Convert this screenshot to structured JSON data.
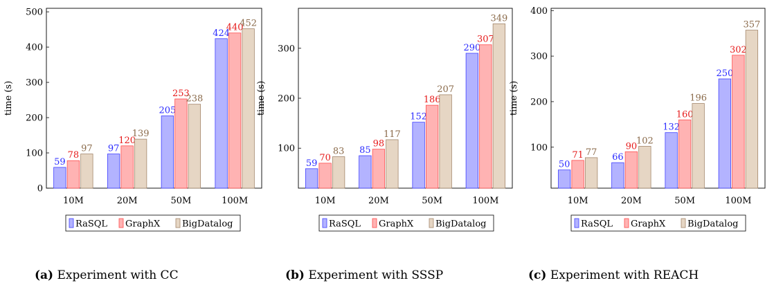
{
  "chart_data": [
    {
      "type": "bar",
      "categories": [
        "10M",
        "20M",
        "50M",
        "100M"
      ],
      "series": [
        {
          "name": "RaSQL",
          "values": [
            59,
            97,
            205,
            424
          ]
        },
        {
          "name": "GraphX",
          "values": [
            78,
            120,
            253,
            440
          ]
        },
        {
          "name": "BigDatalog",
          "values": [
            97,
            139,
            238,
            452
          ]
        }
      ],
      "ylabel": "time (s)",
      "ylim": [
        0,
        510
      ],
      "yticks": [
        0,
        100,
        200,
        300,
        400,
        500
      ],
      "legend": "bottom",
      "grid": false,
      "caption_tag": "(a)",
      "caption": "Experiment with CC"
    },
    {
      "type": "bar",
      "categories": [
        "10M",
        "20M",
        "50M",
        "100M"
      ],
      "series": [
        {
          "name": "RaSQL",
          "values": [
            59,
            85,
            152,
            290
          ]
        },
        {
          "name": "GraphX",
          "values": [
            70,
            98,
            186,
            307
          ]
        },
        {
          "name": "BigDatalog",
          "values": [
            83,
            117,
            207,
            349
          ]
        }
      ],
      "ylabel": "time (s)",
      "ylim": [
        20,
        380
      ],
      "yticks": [
        100,
        200,
        300
      ],
      "legend": "bottom",
      "grid": false,
      "caption_tag": "(b)",
      "caption": "Experiment with SSSP"
    },
    {
      "type": "bar",
      "categories": [
        "10M",
        "20M",
        "50M",
        "100M"
      ],
      "series": [
        {
          "name": "RaSQL",
          "values": [
            50,
            66,
            132,
            250
          ]
        },
        {
          "name": "GraphX",
          "values": [
            71,
            90,
            160,
            302
          ]
        },
        {
          "name": "BigDatalog",
          "values": [
            77,
            102,
            196,
            357
          ]
        }
      ],
      "ylabel": "time (s)",
      "ylim": [
        10,
        405
      ],
      "yticks": [
        100,
        200,
        300,
        400
      ],
      "legend": "bottom",
      "grid": false,
      "caption_tag": "(c)",
      "caption": "Experiment with REACH"
    }
  ],
  "colors": {
    "RaSQL": {
      "fill": "#b3b3ff",
      "stroke": "#4040ff",
      "label": "#2a2aff"
    },
    "GraphX": {
      "fill": "#ffb3b3",
      "stroke": "#ff4d4d",
      "label": "#e61919"
    },
    "BigDatalog": {
      "fill": "#e6d6c4",
      "stroke": "#a3866b",
      "label": "#8a6a4a"
    }
  }
}
